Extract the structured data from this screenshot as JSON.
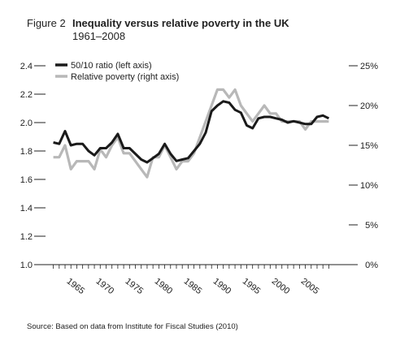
{
  "figure": {
    "label": "Figure 2",
    "title": "Inequality versus relative poverty in the UK",
    "subtitle": "1961–2008",
    "source": "Source: Based on data from Institute for Fiscal Studies (2010)"
  },
  "chart_data": {
    "type": "line",
    "title": "Inequality versus relative poverty in the UK",
    "subtitle": "1961–2008",
    "x": [
      1961,
      1962,
      1963,
      1964,
      1965,
      1966,
      1967,
      1968,
      1969,
      1970,
      1971,
      1972,
      1973,
      1974,
      1975,
      1976,
      1977,
      1978,
      1979,
      1980,
      1981,
      1982,
      1983,
      1984,
      1985,
      1986,
      1987,
      1988,
      1989,
      1990,
      1991,
      1992,
      1993,
      1994,
      1995,
      1996,
      1997,
      1998,
      1999,
      2000,
      2001,
      2002,
      2003,
      2004,
      2005,
      2006,
      2007,
      2008
    ],
    "xlim": [
      1960.5,
      2008.5
    ],
    "x_ticks": [
      1965,
      1970,
      1975,
      1980,
      1985,
      1990,
      1995,
      2000,
      2005
    ],
    "left_axis": {
      "label": "",
      "ylim": [
        1.0,
        2.4
      ],
      "ticks": [
        1.0,
        1.2,
        1.4,
        1.6,
        1.8,
        2.0,
        2.2,
        2.4
      ],
      "tick_labels": [
        "1.0",
        "1.2",
        "1.4",
        "1.6",
        "1.8",
        "2.0",
        "2.2",
        "2.4"
      ]
    },
    "right_axis": {
      "label": "",
      "ylim": [
        0,
        25
      ],
      "ticks": [
        0,
        5,
        10,
        15,
        20,
        25
      ],
      "tick_labels": [
        "0%",
        "5%",
        "10%",
        "15%",
        "20%",
        "25%"
      ]
    },
    "series": [
      {
        "name": "50/10 ratio (left axis)",
        "axis": "left",
        "color": "#1a1a1a",
        "values": [
          1.86,
          1.85,
          1.94,
          1.84,
          1.85,
          1.85,
          1.8,
          1.77,
          1.82,
          1.82,
          1.86,
          1.92,
          1.82,
          1.82,
          1.78,
          1.74,
          1.72,
          1.75,
          1.78,
          1.85,
          1.78,
          1.73,
          1.74,
          1.75,
          1.8,
          1.85,
          1.93,
          2.08,
          2.12,
          2.15,
          2.14,
          2.09,
          2.07,
          1.98,
          1.96,
          2.03,
          2.04,
          2.04,
          2.03,
          2.02,
          2.0,
          2.01,
          2.0,
          1.99,
          1.99,
          2.04,
          2.05,
          2.03
        ]
      },
      {
        "name": "Relative poverty (right axis)",
        "axis": "right",
        "color": "#b8b8b8",
        "values": [
          13.5,
          13.5,
          15.0,
          12.0,
          13.0,
          13.0,
          13.0,
          12.0,
          14.5,
          13.5,
          15.0,
          16.0,
          14.0,
          14.0,
          13.0,
          12.0,
          11.0,
          13.5,
          13.5,
          15.0,
          13.5,
          12.0,
          13.0,
          13.0,
          14.0,
          16.0,
          18.0,
          20.0,
          22.0,
          22.0,
          21.0,
          22.0,
          20.0,
          19.0,
          18.0,
          19.0,
          20.0,
          19.0,
          19.0,
          18.0,
          18.0,
          18.0,
          18.0,
          17.0,
          18.0,
          18.0,
          18.0,
          18.0
        ]
      }
    ],
    "legend": {
      "position": "top-left"
    },
    "grid": false
  }
}
